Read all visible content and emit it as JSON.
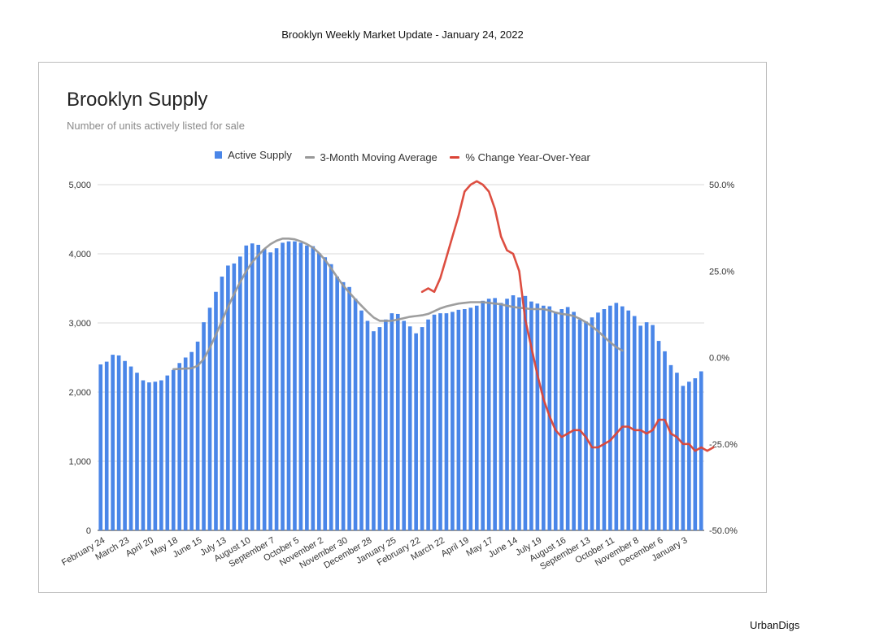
{
  "page": {
    "header": "Brooklyn Weekly Market Update - January 24, 2022",
    "footer": "UrbanDigs"
  },
  "colors": {
    "bars": "#4a86e8",
    "moving_average": "#999999",
    "yoy": "#db4437",
    "grid": "#cccccc"
  },
  "chart_data": {
    "type": "bar",
    "title": "Brooklyn Supply",
    "subtitle": "Number of units actively listed for sale",
    "legend_position": "top",
    "legend": [
      "Active Supply",
      "3-Month Moving Average",
      "% Change Year-Over-Year"
    ],
    "y_left": {
      "min": 0,
      "max": 5000,
      "ticks": [
        "0",
        "1,000",
        "2,000",
        "3,000",
        "4,000",
        "5,000"
      ]
    },
    "y_right": {
      "min": -50,
      "max": 50,
      "ticks": [
        "-50.0%",
        "-25.0%",
        "0.0%",
        "25.0%",
        "50.0%"
      ]
    },
    "x_tick_labels": [
      "February 24",
      "March 23",
      "April 20",
      "May 18",
      "June 15",
      "July 13",
      "August 10",
      "September 7",
      "October 5",
      "November 2",
      "November 30",
      "December 28",
      "January 25",
      "February 22",
      "March 22",
      "April 19",
      "May 17",
      "June 14",
      "July 19",
      "August 16",
      "September 13",
      "October 11",
      "November 8",
      "December 6",
      "January 3"
    ],
    "series": [
      {
        "name": "Active Supply",
        "kind": "bar",
        "axis": "left",
        "values": [
          2400,
          2440,
          2540,
          2530,
          2450,
          2370,
          2280,
          2170,
          2140,
          2150,
          2170,
          2240,
          2320,
          2420,
          2500,
          2580,
          2730,
          3010,
          3220,
          3450,
          3670,
          3830,
          3860,
          3960,
          4120,
          4150,
          4130,
          4070,
          4020,
          4080,
          4160,
          4180,
          4180,
          4160,
          4120,
          4110,
          4010,
          3950,
          3850,
          3670,
          3590,
          3520,
          3350,
          3180,
          3030,
          2880,
          2940,
          3050,
          3140,
          3130,
          3030,
          2950,
          2850,
          2940,
          3050,
          3120,
          3140,
          3140,
          3160,
          3190,
          3200,
          3220,
          3250,
          3320,
          3350,
          3360,
          3290,
          3350,
          3400,
          3370,
          3390,
          3310,
          3280,
          3250,
          3240,
          3160,
          3200,
          3230,
          3160,
          3050,
          3020,
          3080,
          3150,
          3200,
          3250,
          3290,
          3240,
          3180,
          3100,
          2960,
          3010,
          2970,
          2740,
          2590,
          2390,
          2280,
          2090,
          2150,
          2200,
          2300
        ]
      },
      {
        "name": "3-Month Moving Average",
        "kind": "line",
        "axis": "left",
        "start_index": 12,
        "values": [
          2330,
          2335,
          2340,
          2345,
          2380,
          2480,
          2640,
          2830,
          3030,
          3230,
          3420,
          3590,
          3750,
          3880,
          3980,
          4070,
          4140,
          4190,
          4220,
          4220,
          4210,
          4180,
          4140,
          4090,
          4010,
          3910,
          3790,
          3660,
          3540,
          3440,
          3340,
          3250,
          3160,
          3080,
          3030,
          3030,
          3030,
          3050,
          3070,
          3090,
          3100,
          3110,
          3130,
          3170,
          3210,
          3240,
          3260,
          3280,
          3290,
          3300,
          3300,
          3300,
          3290,
          3280,
          3270,
          3250,
          3230,
          3220,
          3210,
          3200,
          3200,
          3200,
          3180,
          3150,
          3130,
          3120,
          3100,
          3060,
          3010,
          2950,
          2880,
          2800,
          2720,
          2650,
          2600
        ]
      },
      {
        "name": "% Change Year-Over-Year",
        "kind": "line",
        "axis": "right",
        "start_index": 53,
        "values": [
          19,
          20,
          19,
          23,
          29,
          35,
          41,
          48,
          50,
          51,
          50,
          48,
          43,
          35,
          31,
          30,
          25,
          11,
          3,
          -5,
          -12,
          -17,
          -21,
          -23,
          -22,
          -21,
          -21,
          -23,
          -26,
          -26,
          -25,
          -24,
          -22,
          -20,
          -20,
          -21,
          -21,
          -22,
          -21,
          -18,
          -18,
          -22,
          -23,
          -25,
          -25,
          -27,
          -26,
          -27,
          -26
        ]
      }
    ]
  }
}
